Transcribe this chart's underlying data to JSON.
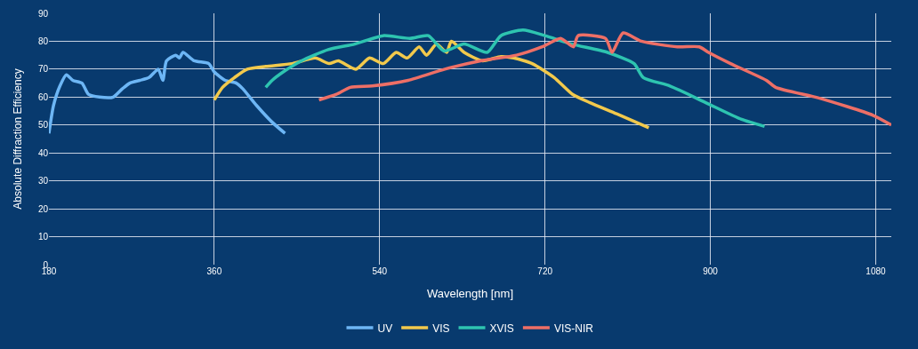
{
  "chart_data": {
    "type": "line",
    "xlabel": "Wavelength [nm]",
    "ylabel": "Absolute Diffraction Efficiency",
    "xlim": [
      180,
      1097
    ],
    "xticks": [
      180,
      360,
      540,
      720,
      900,
      1080
    ],
    "ylim": [
      0,
      90
    ],
    "yticks": [
      0,
      10,
      20,
      30,
      40,
      50,
      60,
      70,
      80,
      90
    ],
    "grid": true,
    "legend": "bottom",
    "marker": "none",
    "line_style": "solid",
    "series": [
      {
        "name": "UV",
        "color": "#6db6f5",
        "x": [
          180,
          185,
          192,
          199,
          206,
          216,
          223,
          235,
          250,
          260,
          268,
          279,
          289,
          299,
          304,
          308,
          318,
          322,
          326,
          338,
          354,
          360,
          372,
          384,
          391,
          406,
          423,
          437
        ],
        "values": [
          47,
          57,
          64,
          68,
          66,
          65,
          61,
          60,
          60,
          63,
          65,
          66,
          67,
          70,
          66,
          73,
          75,
          74,
          76,
          73,
          72,
          69,
          66,
          65,
          63,
          57,
          51,
          47
        ]
      },
      {
        "name": "VIS",
        "color": "#f2c94c",
        "x": [
          360,
          369,
          382,
          396,
          416,
          445,
          470,
          485,
          495,
          514,
          529,
          544,
          558,
          570,
          583,
          591,
          602,
          613,
          618,
          632,
          652,
          672,
          686,
          706,
          730,
          750,
          769,
          798,
          833
        ],
        "values": [
          59,
          63.5,
          67,
          70,
          71,
          72,
          74,
          72,
          73,
          70,
          74,
          72,
          76,
          74,
          78,
          75,
          79,
          76,
          80,
          76,
          73,
          74.5,
          74,
          72,
          67,
          61,
          58,
          54,
          49
        ]
      },
      {
        "name": "XVIS",
        "color": "#2ec4b0",
        "x": [
          416,
          423,
          435,
          455,
          484,
          513,
          544,
          573,
          593,
          610,
          632,
          657,
          672,
          696,
          720,
          749,
          788,
          817,
          827,
          856,
          895,
          934,
          959
        ],
        "values": [
          63.5,
          66,
          69,
          73,
          77,
          79,
          82,
          81,
          82,
          76.5,
          79,
          76,
          82,
          84,
          82,
          79,
          76,
          72,
          67,
          64,
          58,
          52,
          49.5
        ]
      },
      {
        "name": "VIS-NIR",
        "color": "#ee6f66",
        "x": [
          474,
          493,
          508,
          532,
          571,
          611,
          650,
          689,
          717,
          737,
          751,
          756,
          786,
          793,
          805,
          825,
          864,
          888,
          898,
          922,
          961,
          971,
          1019,
          1077,
          1097
        ],
        "values": [
          59,
          61,
          63.5,
          64,
          66,
          70,
          73,
          75,
          78,
          81,
          78,
          82,
          81,
          76,
          83,
          80,
          78,
          78,
          76,
          72,
          66,
          63.5,
          59.6,
          53.5,
          50
        ]
      }
    ]
  }
}
